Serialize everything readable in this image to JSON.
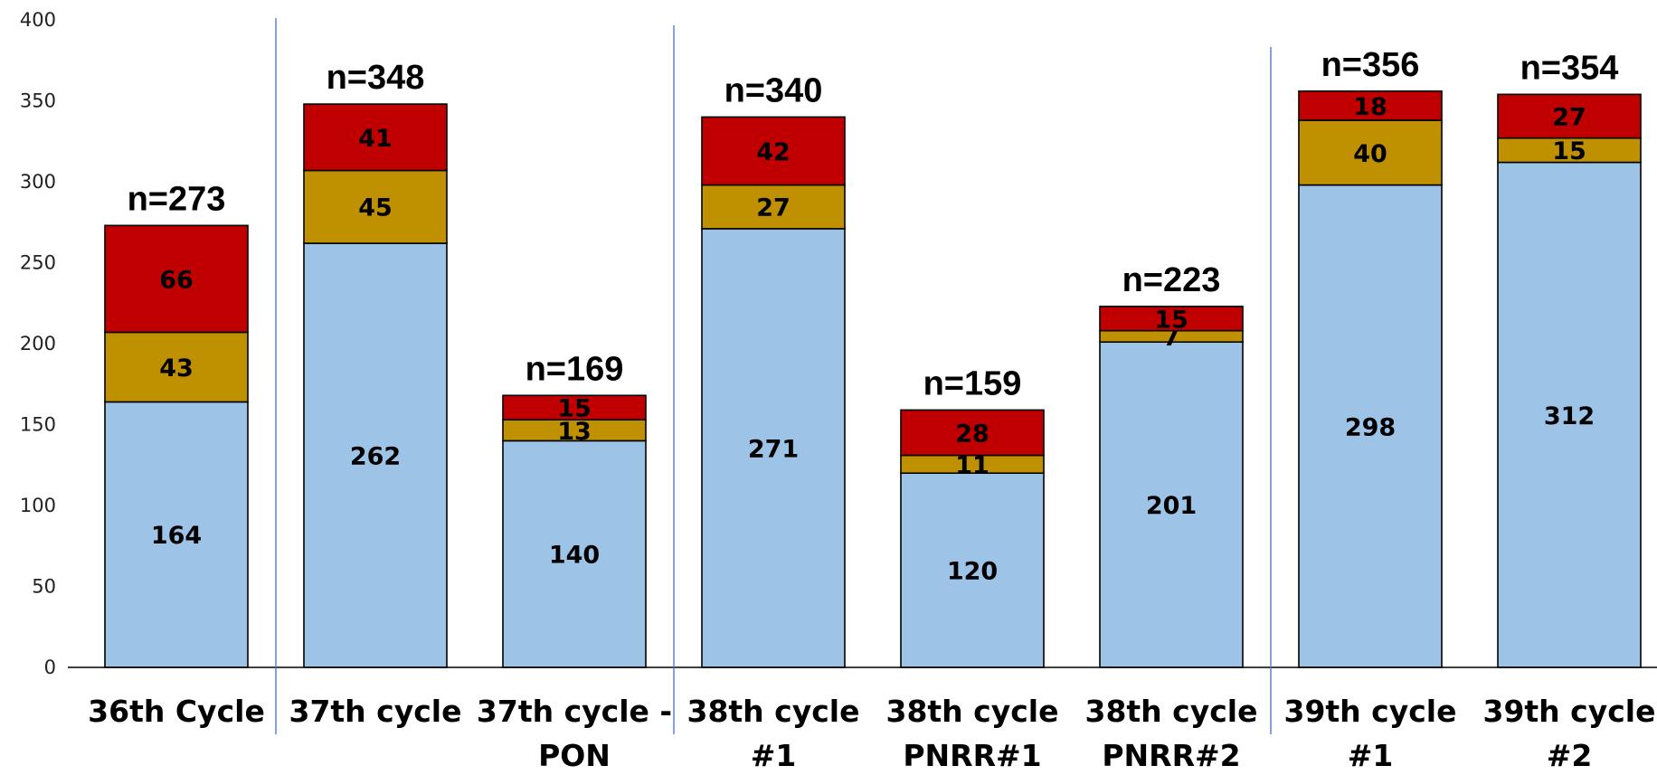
{
  "chart_data": {
    "type": "bar",
    "stacked": true,
    "title": "",
    "xlabel": "",
    "ylabel": "",
    "ylim": [
      0,
      400
    ],
    "yticks": [
      "0",
      "50",
      "100",
      "150",
      "200",
      "250",
      "300",
      "350",
      "400"
    ],
    "grid": false,
    "legend": "none",
    "categories": [
      [
        "36th Cycle"
      ],
      [
        "37th cycle"
      ],
      [
        "37th cycle -",
        "PON"
      ],
      [
        "38th cycle",
        "#1"
      ],
      [
        "38th cycle",
        "PNRR#1"
      ],
      [
        "38th cycle",
        "PNRR#2"
      ],
      [
        "39th cycle",
        "#1"
      ],
      [
        "39th cycle",
        "#2"
      ]
    ],
    "totals": [
      "n=273",
      "n=348",
      "n=169",
      "n=340",
      "n=159",
      "n=223",
      "n=356",
      "n=354"
    ],
    "series": [
      {
        "values": [
          164,
          262,
          140,
          271,
          120,
          201,
          298,
          312
        ],
        "color": "#9DC3E6"
      },
      {
        "values": [
          43,
          45,
          13,
          27,
          11,
          7,
          40,
          15
        ],
        "color": "#BF9000"
      },
      {
        "values": [
          66,
          41,
          15,
          42,
          28,
          15,
          18,
          27
        ],
        "color": "#C00000"
      }
    ],
    "separators_after_categories": [
      0,
      2,
      5
    ],
    "separator_color": "#4472C4"
  }
}
